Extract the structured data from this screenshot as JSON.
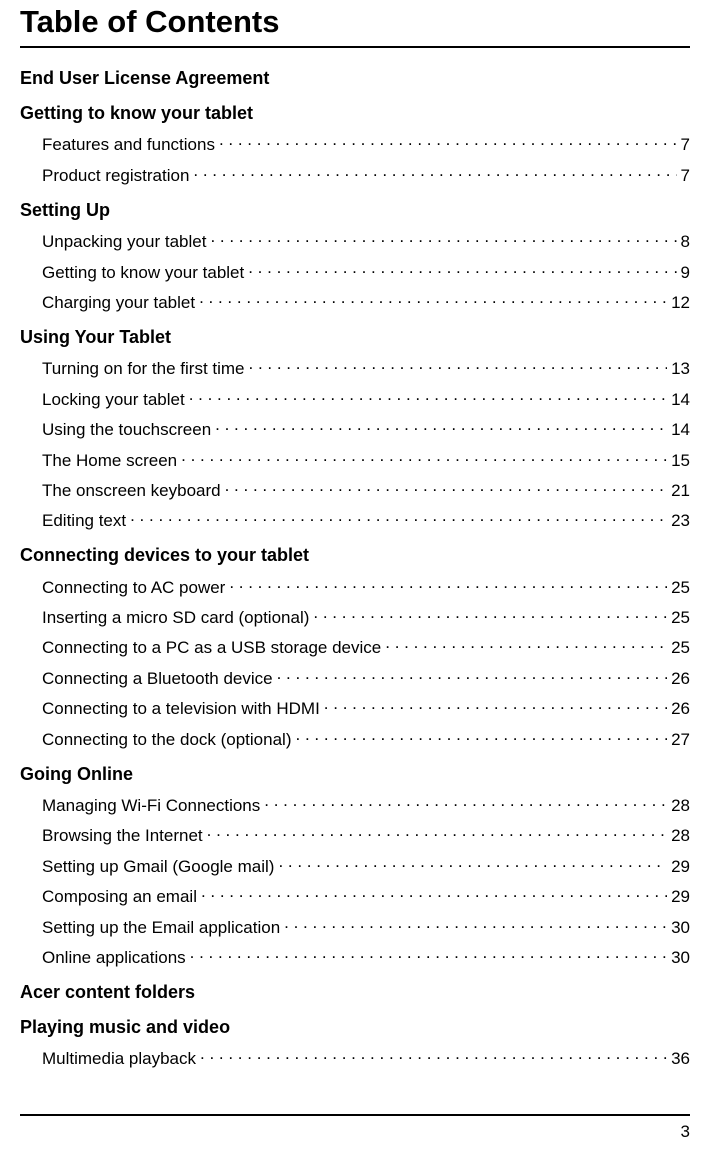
{
  "title": "Table of Contents",
  "page_number": "3",
  "colors": {
    "text": "#000000",
    "background": "#ffffff",
    "rule": "#000000"
  },
  "typography": {
    "title_fontsize": 31,
    "section_fontsize": 18,
    "entry_fontsize": 17,
    "title_weight": 700,
    "section_weight": 700,
    "entry_weight": 400
  },
  "sections": [
    {
      "header": "End User License Agreement",
      "entries": []
    },
    {
      "header": "Getting to know your tablet",
      "entries": [
        {
          "label": "Features and functions",
          "page": "7"
        },
        {
          "label": "Product registration",
          "page": "7"
        }
      ]
    },
    {
      "header": "Setting Up",
      "entries": [
        {
          "label": "Unpacking your tablet",
          "page": "8"
        },
        {
          "label": "Getting to know your tablet",
          "page": "9"
        },
        {
          "label": "Charging your tablet",
          "page": "12"
        }
      ]
    },
    {
      "header": "Using Your Tablet",
      "entries": [
        {
          "label": "Turning on for the first time",
          "page": "13"
        },
        {
          "label": "Locking your tablet",
          "page": "14"
        },
        {
          "label": "Using the touchscreen",
          "page": "14"
        },
        {
          "label": "The Home screen",
          "page": "15"
        },
        {
          "label": "The onscreen keyboard",
          "page": "21"
        },
        {
          "label": "Editing text",
          "page": "23"
        }
      ]
    },
    {
      "header": "Connecting devices to your tablet",
      "entries": [
        {
          "label": "Connecting to AC power",
          "page": "25"
        },
        {
          "label": "Inserting a micro SD card (optional)",
          "page": "25"
        },
        {
          "label": "Connecting to a PC as a USB storage device",
          "page": "25"
        },
        {
          "label": "Connecting a Bluetooth device",
          "page": "26"
        },
        {
          "label": "Connecting to a television with HDMI",
          "page": "26"
        },
        {
          "label": "Connecting to the dock (optional)",
          "page": "27"
        }
      ]
    },
    {
      "header": "Going Online",
      "entries": [
        {
          "label": "Managing Wi-Fi Connections",
          "page": "28"
        },
        {
          "label": "Browsing the Internet",
          "page": "28"
        },
        {
          "label": "Setting up Gmail (Google mail)",
          "page": "29"
        },
        {
          "label": "Composing an email",
          "page": "29"
        },
        {
          "label": "Setting up the Email application",
          "page": "30"
        },
        {
          "label": "Online applications",
          "page": "30"
        }
      ]
    },
    {
      "header": "Acer content folders",
      "entries": []
    },
    {
      "header": "Playing music and video",
      "entries": [
        {
          "label": "Multimedia playback",
          "page": "36"
        }
      ]
    }
  ]
}
